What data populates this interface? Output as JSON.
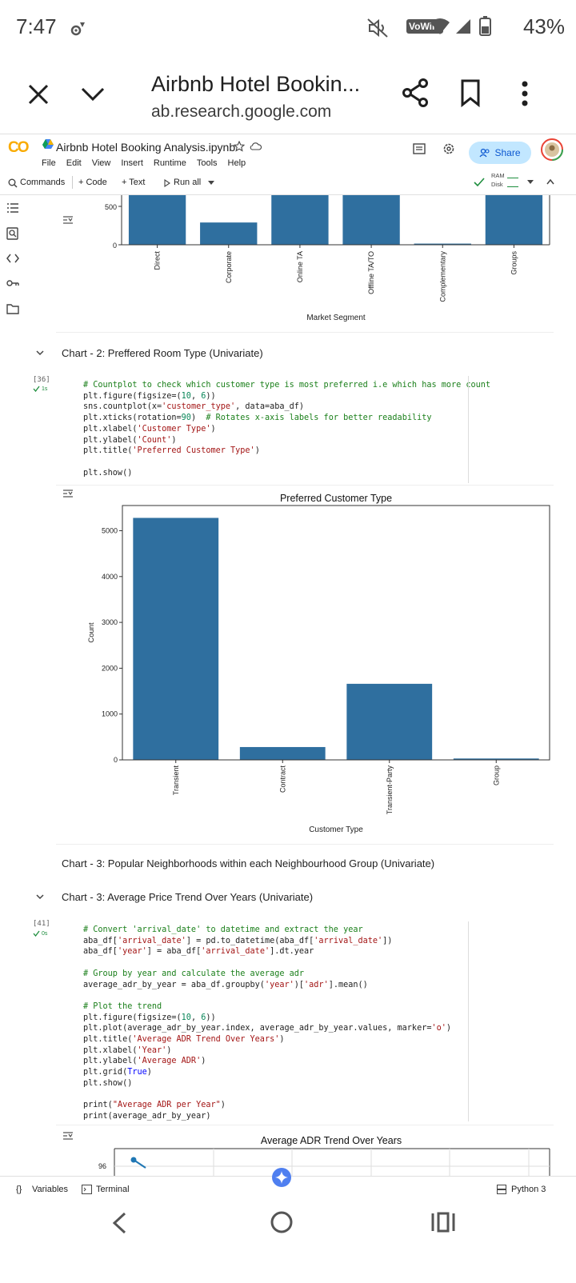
{
  "status_bar": {
    "time": "7:47",
    "battery_pct": "43%",
    "vowifi": "VoWiFi"
  },
  "browser": {
    "title": "Airbnb Hotel Bookin...",
    "url": "ab.research.google.com"
  },
  "colab": {
    "logo": "CO",
    "notebook_name": "Airbnb Hotel Booking Analysis.ipynb",
    "menu": [
      "File",
      "Edit",
      "View",
      "Insert",
      "Runtime",
      "Tools",
      "Help"
    ],
    "share_label": "Share",
    "toolbar": {
      "commands": "Commands",
      "code": "+ Code",
      "text": "+ Text",
      "run_all": "Run all",
      "ram": "RAM",
      "disk": "Disk"
    }
  },
  "cells": {
    "chart1_xlabel": "Market Segment",
    "section2_title": "Chart - 2: Preffered Room Type (Univariate)",
    "cell36": {
      "exec_count": "[36]",
      "exec_time": "1s",
      "lines": [
        "# Countplot to check which customer type is most preferred i.e which has more count",
        "plt.figure(figsize=(10, 6))",
        "sns.countplot(x='customer_type', data=aba_df)",
        "plt.xticks(rotation=90)  # Rotates x-axis labels for better readability",
        "plt.xlabel('Customer Type')",
        "plt.ylabel('Count')",
        "plt.title('Preferred Customer Type')",
        "",
        "plt.show()"
      ]
    },
    "section3a_title": "Chart - 3: Popular Neighborhoods within each Neighbourhood Group (Univariate)",
    "section3b_title": "Chart - 3: Average Price Trend Over Years (Univariate)",
    "cell41": {
      "exec_count": "[41]",
      "exec_time": "0s",
      "lines": [
        "# Convert 'arrival_date' to datetime and extract the year",
        "aba_df['arrival_date'] = pd.to_datetime(aba_df['arrival_date'])",
        "aba_df['year'] = aba_df['arrival_date'].dt.year",
        "",
        "# Group by year and calculate the average adr",
        "average_adr_by_year = aba_df.groupby('year')['adr'].mean()",
        "",
        "# Plot the trend",
        "plt.figure(figsize=(10, 6))",
        "plt.plot(average_adr_by_year.index, average_adr_by_year.values, marker='o')",
        "plt.title('Average ADR Trend Over Years')",
        "plt.xlabel('Year')",
        "plt.ylabel('Average ADR')",
        "plt.grid(True)",
        "plt.show()",
        "",
        "print(\"Average ADR per Year\")",
        "print(average_adr_by_year)"
      ]
    }
  },
  "chart_data": [
    {
      "type": "bar",
      "title": "",
      "xlabel": "Market Segment",
      "ylabel": "",
      "categories": [
        "Direct",
        "Corporate",
        "Online TA",
        "Offline TA/TO",
        "Complementary",
        "Groups"
      ],
      "values": [
        null,
        290,
        null,
        null,
        15,
        null
      ],
      "visible_yticks": [
        0,
        500
      ],
      "note": "partially visible"
    },
    {
      "type": "bar",
      "title": "Preferred Customer Type",
      "xlabel": "Customer Type",
      "ylabel": "Count",
      "categories": [
        "Transient",
        "Contract",
        "Transient-Party",
        "Group"
      ],
      "values": [
        5280,
        280,
        1660,
        30
      ],
      "yticks": [
        0,
        1000,
        2000,
        3000,
        4000,
        5000
      ],
      "ylim": [
        0,
        5550
      ],
      "color": "#2f6f9f"
    },
    {
      "type": "line",
      "title": "Average ADR Trend Over Years",
      "visible_yticks": [
        96
      ],
      "x_index": [
        0
      ],
      "values": [
        96.1
      ],
      "marker": "o",
      "grid": true,
      "note": "partially visible"
    }
  ],
  "bottom_bar": {
    "variables": "Variables",
    "terminal": "Terminal",
    "python": "Python 3"
  }
}
